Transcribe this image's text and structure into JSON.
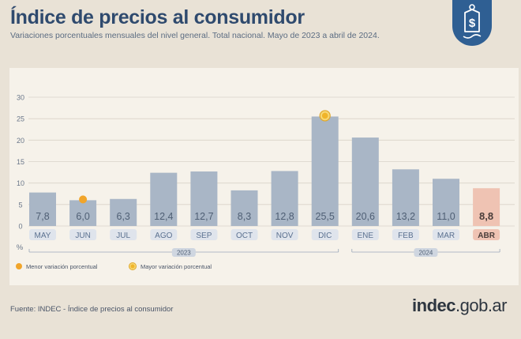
{
  "header": {
    "title": "Índice de precios al consumidor",
    "subtitle": "Variaciones porcentuales mensuales del nivel general. Total nacional. Mayo de 2023 a abril de 2024."
  },
  "badge": {
    "icon": "price-tag-dollar-icon"
  },
  "chart_data": {
    "type": "bar",
    "categories": [
      "MAY",
      "JUN",
      "JUL",
      "AGO",
      "SEP",
      "OCT",
      "NOV",
      "DIC",
      "ENE",
      "FEB",
      "MAR",
      "ABR"
    ],
    "values": [
      7.8,
      6.0,
      6.3,
      12.4,
      12.7,
      8.3,
      12.8,
      25.5,
      20.6,
      13.2,
      11.0,
      8.8
    ],
    "value_labels": [
      "7,8",
      "6,0",
      "6,3",
      "12,4",
      "12,7",
      "8,3",
      "12,8",
      "25,5",
      "20,6",
      "13,2",
      "11,0",
      "8,8"
    ],
    "year_groups": [
      {
        "label": "2023",
        "from": 0,
        "to": 7
      },
      {
        "label": "2024",
        "from": 8,
        "to": 11
      }
    ],
    "y_ticks": [
      0,
      5,
      10,
      15,
      20,
      25,
      30
    ],
    "ylim": [
      0,
      30
    ],
    "ylabel": "%",
    "grid": true,
    "highlight_index": 11,
    "min_marker_index": 1,
    "max_marker_index": 7,
    "colors": {
      "bar": "#a9b6c6",
      "bar_highlight": "#efc3b3",
      "min_marker": "#f1a52a",
      "max_marker": "#f0b429",
      "label": "#4f5f74",
      "label_highlight": "#4a3d3a"
    }
  },
  "legend": {
    "min_label": "Menor variación porcentual",
    "max_label": "Mayor variación porcentual"
  },
  "footer": {
    "source": "Fuente: INDEC - Índice de precios al consumidor",
    "brand_bold": "indec",
    "brand_rest": ".gob.ar"
  }
}
